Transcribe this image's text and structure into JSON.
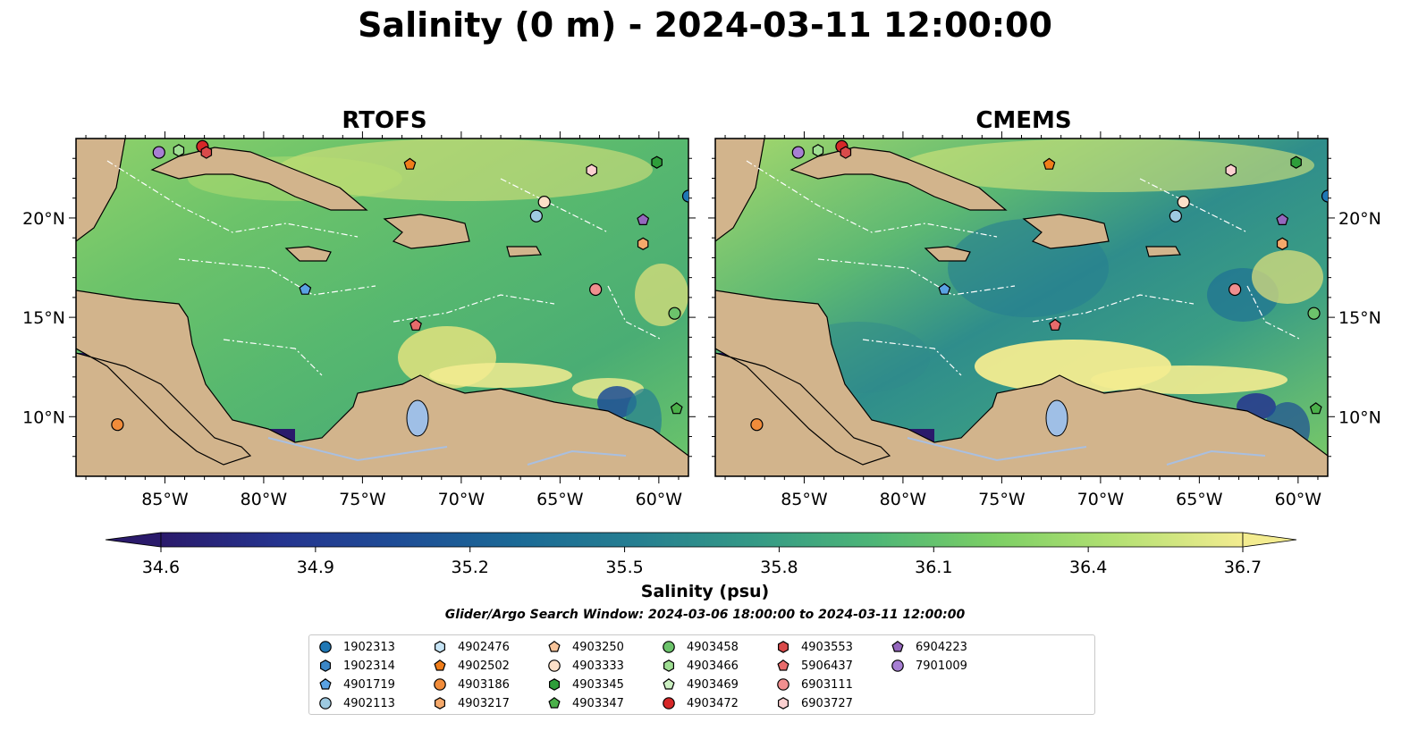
{
  "title": "Salinity (0 m) - 2024-03-11 12:00:00",
  "panels": [
    {
      "id": "left",
      "title": "RTOFS"
    },
    {
      "id": "right",
      "title": "CMEMS"
    }
  ],
  "axes": {
    "lon_ticks": [
      "85°W",
      "80°W",
      "75°W",
      "70°W",
      "65°W",
      "60°W"
    ],
    "lat_ticks": [
      "20°N",
      "15°N",
      "10°N"
    ],
    "lon_range": [
      -89.5,
      -58.5
    ],
    "lat_range": [
      7,
      24
    ]
  },
  "colorbar": {
    "label": "Salinity (psu)",
    "ticks": [
      "34.6",
      "34.9",
      "35.2",
      "35.5",
      "35.8",
      "36.1",
      "36.4",
      "36.7"
    ],
    "range": [
      34.6,
      36.7
    ],
    "extend": "both",
    "colormap": [
      "#2a1a6b",
      "#25348f",
      "#1e4d96",
      "#1b6a96",
      "#267f91",
      "#359a86",
      "#4eb677",
      "#7ccf65",
      "#b2e072",
      "#f3ec90"
    ]
  },
  "search_window": "Glider/Argo Search Window: 2024-03-06 18:00:00 to 2024-03-11 12:00:00",
  "colors": {
    "land": "#d2b48c",
    "lake": "#9fbfe6",
    "river": "#a9bfe0",
    "eez_lines": "#ffffff"
  },
  "legend": [
    {
      "id": "1902313",
      "marker": "circle",
      "color": "#1f77b4"
    },
    {
      "id": "1902314",
      "marker": "hexagon",
      "color": "#3b86c6"
    },
    {
      "id": "4901719",
      "marker": "pentagon",
      "color": "#5aa2e3"
    },
    {
      "id": "4902113",
      "marker": "circle",
      "color": "#9ecae1"
    },
    {
      "id": "4902476",
      "marker": "hexagon",
      "color": "#c6e4f5"
    },
    {
      "id": "4902502",
      "marker": "pentagon",
      "color": "#f07d1a"
    },
    {
      "id": "4903186",
      "marker": "circle",
      "color": "#f18c3a"
    },
    {
      "id": "4903217",
      "marker": "hexagon",
      "color": "#f5a96b"
    },
    {
      "id": "4903250",
      "marker": "pentagon",
      "color": "#f8c49a"
    },
    {
      "id": "4903333",
      "marker": "circle",
      "color": "#fde0c8"
    },
    {
      "id": "4903345",
      "marker": "hexagon",
      "color": "#2e9e3a"
    },
    {
      "id": "4903347",
      "marker": "pentagon",
      "color": "#4bb04a"
    },
    {
      "id": "4903458",
      "marker": "circle",
      "color": "#6cc36b"
    },
    {
      "id": "4903466",
      "marker": "hexagon",
      "color": "#9fde93"
    },
    {
      "id": "4903469",
      "marker": "pentagon",
      "color": "#ccf0c2"
    },
    {
      "id": "4903472",
      "marker": "circle",
      "color": "#d62728"
    },
    {
      "id": "4903553",
      "marker": "hexagon",
      "color": "#d94a4a"
    },
    {
      "id": "5906437",
      "marker": "pentagon",
      "color": "#e86b6b"
    },
    {
      "id": "6903111",
      "marker": "circle",
      "color": "#f08f8f"
    },
    {
      "id": "6903727",
      "marker": "hexagon",
      "color": "#fbd0d0"
    },
    {
      "id": "6904223",
      "marker": "pentagon",
      "color": "#9467bd"
    },
    {
      "id": "7901009",
      "marker": "circle",
      "color": "#a77fd3"
    }
  ],
  "floats": [
    {
      "lon": -85.3,
      "lat": 23.3,
      "id": "7901009"
    },
    {
      "lon": -84.3,
      "lat": 23.4,
      "id": "4903466"
    },
    {
      "lon": -83.1,
      "lat": 23.6,
      "id": "4903472"
    },
    {
      "lon": -82.9,
      "lat": 23.3,
      "id": "4903553"
    },
    {
      "lon": -72.6,
      "lat": 22.7,
      "id": "4902502"
    },
    {
      "lon": -63.4,
      "lat": 22.4,
      "id": "6903727"
    },
    {
      "lon": -60.1,
      "lat": 22.8,
      "id": "4903345"
    },
    {
      "lon": -65.8,
      "lat": 20.8,
      "id": "4903333"
    },
    {
      "lon": -66.2,
      "lat": 20.1,
      "id": "4902113"
    },
    {
      "lon": -58.5,
      "lat": 21.1,
      "id": "1902313"
    },
    {
      "lon": -60.8,
      "lat": 19.9,
      "id": "6904223"
    },
    {
      "lon": -60.8,
      "lat": 18.7,
      "id": "4903217"
    },
    {
      "lon": -77.9,
      "lat": 16.4,
      "id": "4901719"
    },
    {
      "lon": -63.2,
      "lat": 16.4,
      "id": "6903111"
    },
    {
      "lon": -72.3,
      "lat": 14.6,
      "id": "5906437"
    },
    {
      "lon": -59.2,
      "lat": 15.2,
      "id": "4903458"
    },
    {
      "lon": -59.1,
      "lat": 10.4,
      "id": "4903347"
    },
    {
      "lon": -87.4,
      "lat": 9.6,
      "id": "4903186"
    }
  ]
}
